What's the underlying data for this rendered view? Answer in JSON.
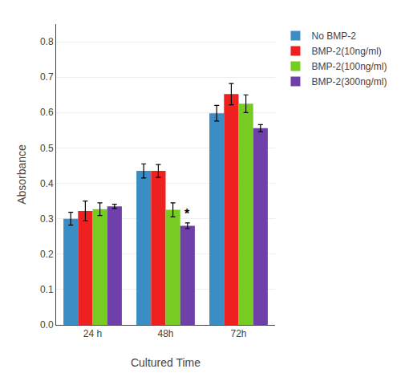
{
  "chart_data": {
    "type": "bar",
    "categories": [
      "24 h",
      "48h",
      "72h"
    ],
    "series": [
      {
        "name": "No BMP-2",
        "color": "#3A8DC5",
        "values": [
          0.3,
          0.435,
          0.598
        ],
        "errors": [
          0.018,
          0.02,
          0.022
        ]
      },
      {
        "name": "BMP-2(10ng/ml)",
        "color": "#EE2020",
        "values": [
          0.322,
          0.435,
          0.652
        ],
        "errors": [
          0.028,
          0.018,
          0.03
        ]
      },
      {
        "name": "BMP-2(100ng/ml)",
        "color": "#77CC22",
        "values": [
          0.327,
          0.325,
          0.625
        ],
        "errors": [
          0.018,
          0.02,
          0.025
        ]
      },
      {
        "name": "BMP-2(300ng/ml)",
        "color": "#7040AA",
        "values": [
          0.335,
          0.28,
          0.556
        ],
        "errors": [
          0.006,
          0.008,
          0.01
        ]
      }
    ],
    "annotations": [
      {
        "text": "*",
        "category": "48h",
        "series": "BMP-2(300ng/ml)"
      }
    ],
    "xlabel": "Cultured Time",
    "ylabel": "Absorbance",
    "ylim": [
      0,
      0.85
    ],
    "yticks": [
      {
        "value": 0,
        "label": "0.0"
      },
      0.1,
      0.2,
      0.3,
      0.4,
      0.5,
      0.6,
      0.7,
      0.8
    ],
    "grid": true,
    "legend": "right"
  }
}
